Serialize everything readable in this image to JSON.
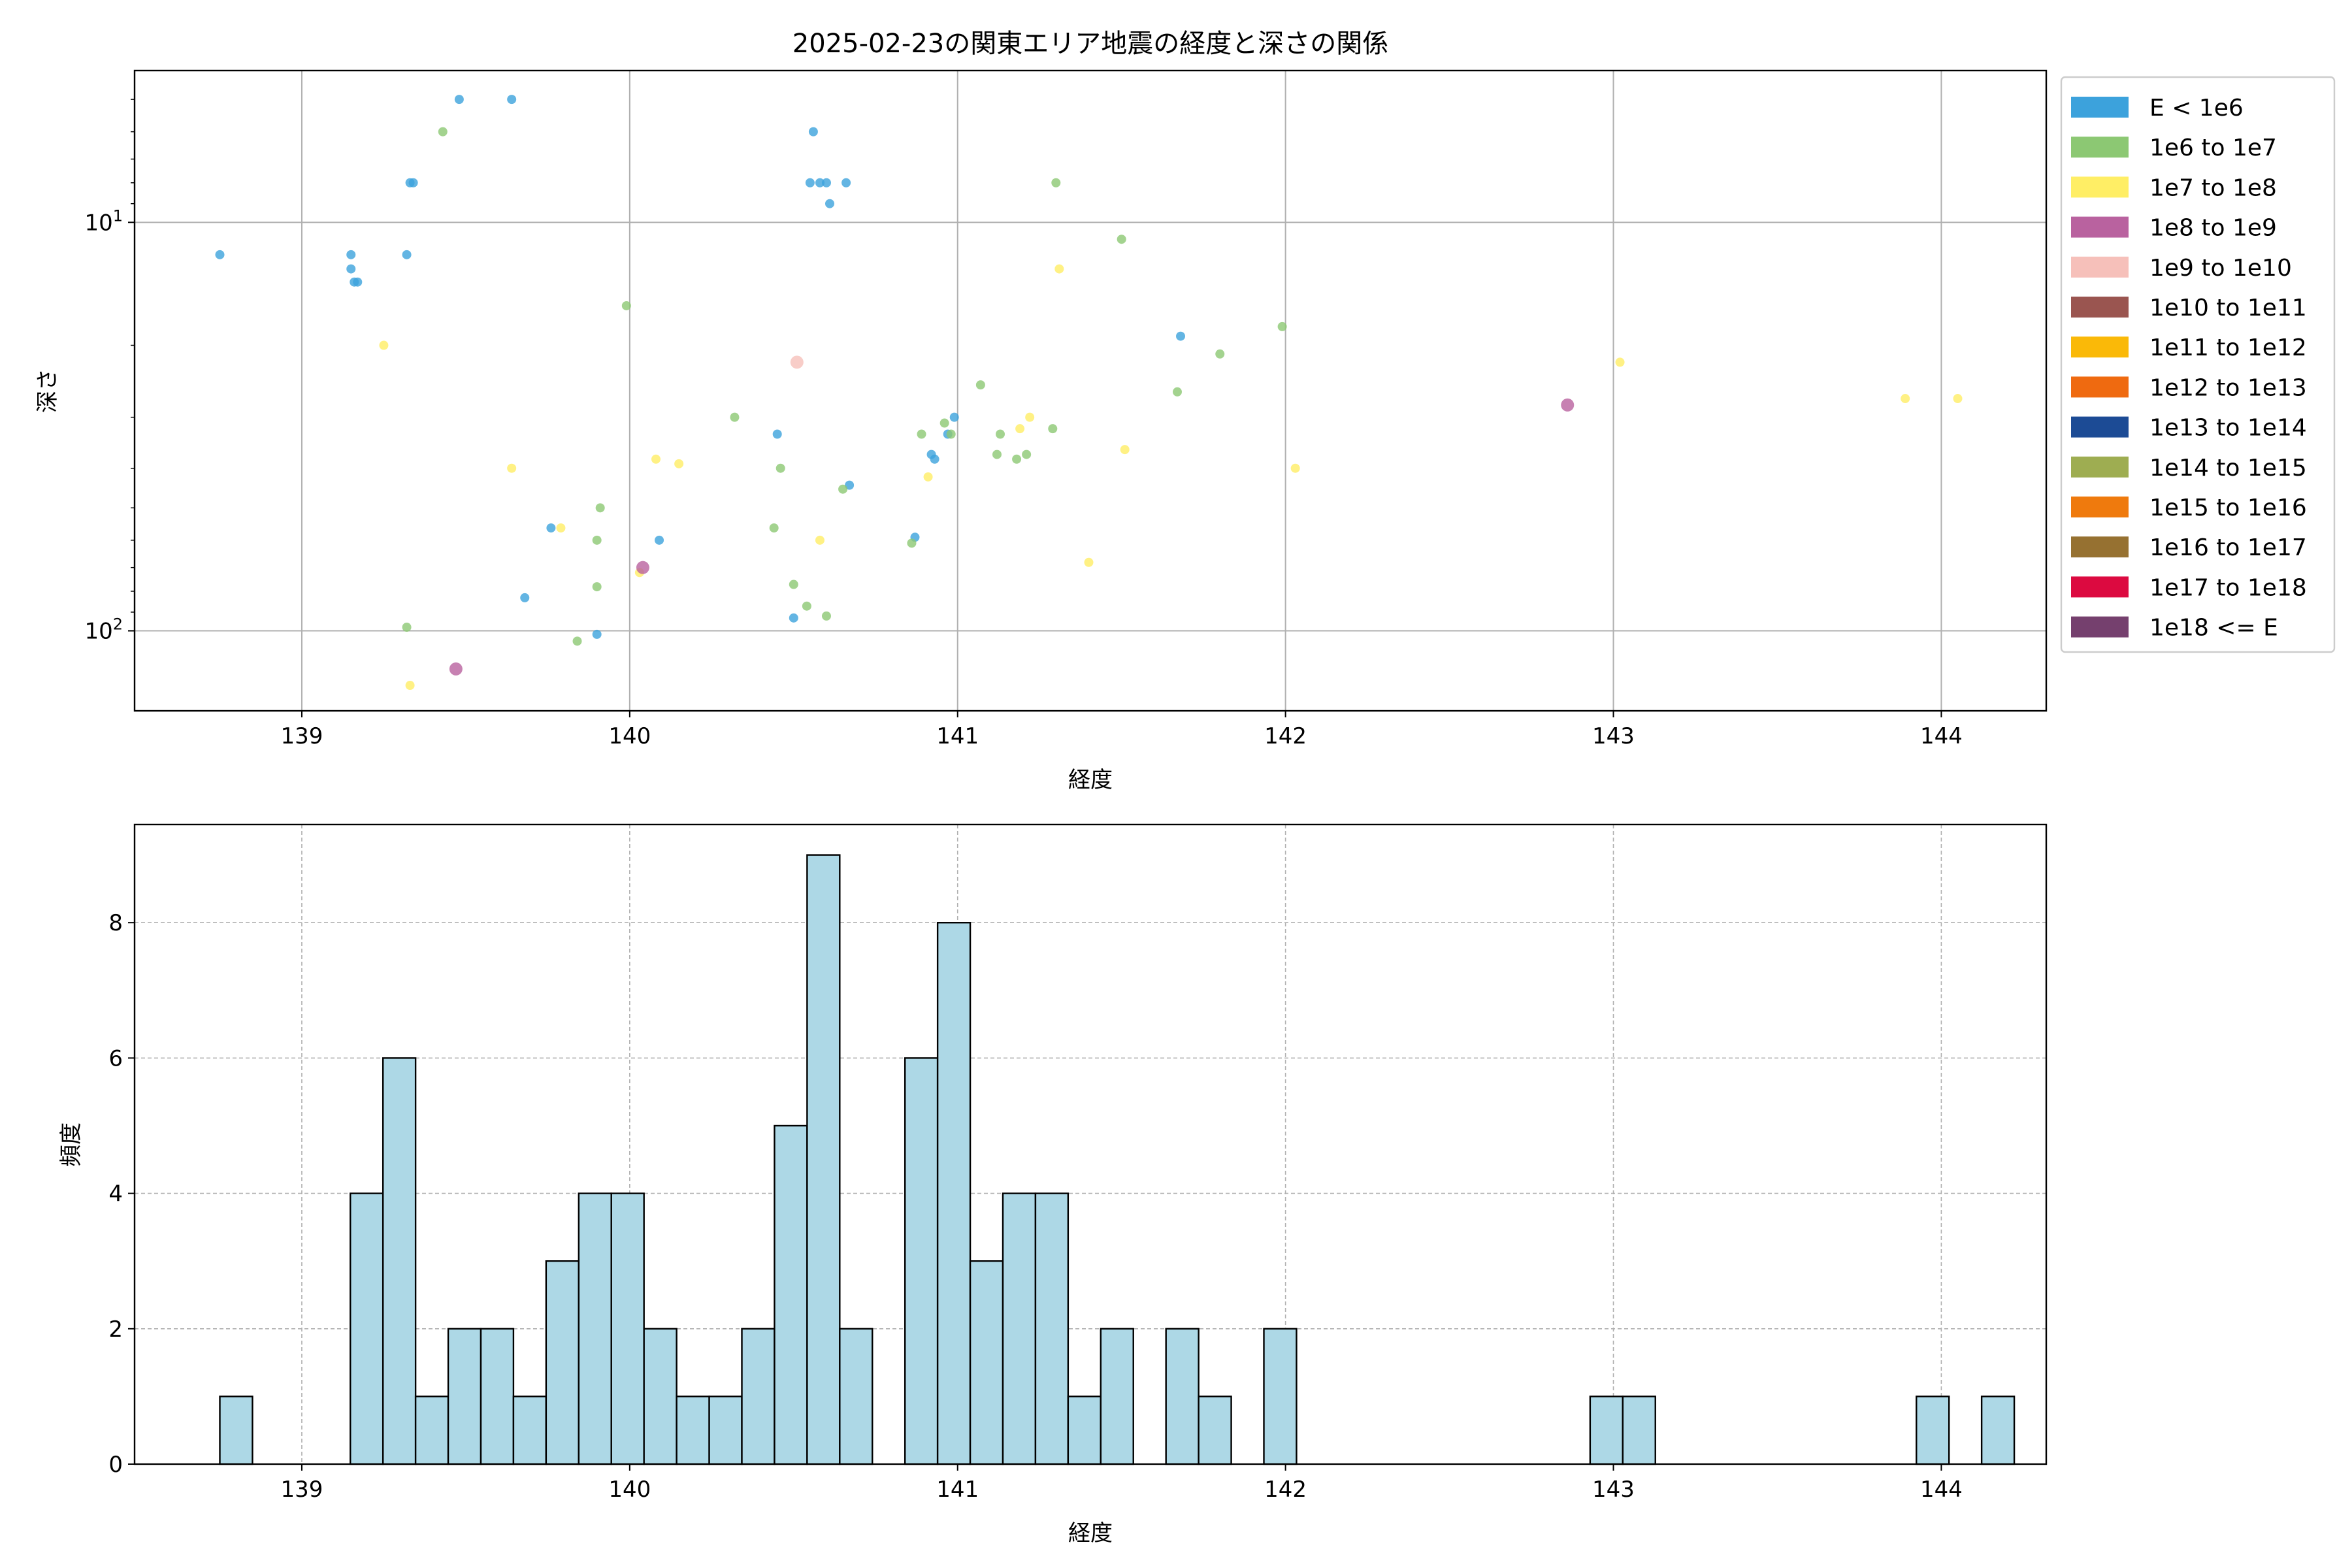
{
  "chart_data": [
    {
      "type": "scatter",
      "title": "2025-02-23の関東エリア地震の経度と深さの関係",
      "xlabel": "経度",
      "ylabel": "深さ",
      "xlim": [
        138.49,
        144.32
      ],
      "ylim": [
        157,
        4.25
      ],
      "y_scale": "log",
      "y_inverted": true,
      "x_ticks": [
        139,
        140,
        141,
        142,
        143,
        144
      ],
      "x_tick_labels": [
        "139",
        "140",
        "141",
        "142",
        "143",
        "144"
      ],
      "y_ticks": [
        10,
        100
      ],
      "y_tick_labels": [
        "10^1",
        "10^2"
      ],
      "grid": true,
      "legend_position": "outside-right",
      "legend": [
        {
          "label": "E < 1e6",
          "color": "#3ca2dc"
        },
        {
          "label": "1e6 to 1e7",
          "color": "#8cc873"
        },
        {
          "label": "1e7 to 1e8",
          "color": "#ffee65"
        },
        {
          "label": "1e8 to 1e9",
          "color": "#b9629f"
        },
        {
          "label": "1e9 to 1e10",
          "color": "#f6c0ba"
        },
        {
          "label": "1e10 to 1e11",
          "color": "#9a5550"
        },
        {
          "label": "1e11 to 1e12",
          "color": "#fab908"
        },
        {
          "label": "1e12 to 1e13",
          "color": "#ef6a10"
        },
        {
          "label": "1e13 to 1e14",
          "color": "#1c4b95"
        },
        {
          "label": "1e14 to 1e15",
          "color": "#9ead51"
        },
        {
          "label": "1e15 to 1e16",
          "color": "#ef7a0d"
        },
        {
          "label": "1e16 to 1e17",
          "color": "#967131"
        },
        {
          "label": "1e17 to 1e18",
          "color": "#dc0a40"
        },
        {
          "label": "1e18 <= E",
          "color": "#75406e"
        }
      ],
      "series": [
        {
          "name": "E < 1e6",
          "color": "#3ca2dc",
          "points": [
            [
              138.75,
              12
            ],
            [
              139.15,
              12
            ],
            [
              139.15,
              13
            ],
            [
              139.16,
              14
            ],
            [
              139.17,
              14
            ],
            [
              139.32,
              12
            ],
            [
              139.33,
              8
            ],
            [
              139.34,
              8
            ],
            [
              139.48,
              5
            ],
            [
              139.64,
              5
            ],
            [
              140.56,
              6
            ],
            [
              140.55,
              8
            ],
            [
              140.58,
              8
            ],
            [
              140.6,
              8
            ],
            [
              140.61,
              9
            ],
            [
              140.66,
              8
            ],
            [
              141.68,
              19
            ],
            [
              140.45,
              33
            ],
            [
              140.97,
              33
            ],
            [
              140.99,
              30
            ],
            [
              140.92,
              37
            ],
            [
              140.93,
              38
            ],
            [
              140.67,
              44
            ],
            [
              139.76,
              56
            ],
            [
              140.09,
              60
            ],
            [
              140.87,
              59
            ],
            [
              139.68,
              83
            ],
            [
              140.5,
              93
            ],
            [
              139.9,
              102
            ]
          ]
        },
        {
          "name": "1e6 to 1e7",
          "color": "#8cc873",
          "points": [
            [
              139.43,
              6
            ],
            [
              141.3,
              8
            ],
            [
              141.5,
              11
            ],
            [
              139.99,
              16
            ],
            [
              141.99,
              18
            ],
            [
              141.8,
              21
            ],
            [
              141.67,
              26
            ],
            [
              141.07,
              25
            ],
            [
              140.32,
              30
            ],
            [
              140.96,
              31
            ],
            [
              140.89,
              33
            ],
            [
              140.98,
              33
            ],
            [
              141.13,
              33
            ],
            [
              141.29,
              32
            ],
            [
              141.12,
              37
            ],
            [
              141.21,
              37
            ],
            [
              141.18,
              38
            ],
            [
              140.46,
              40
            ],
            [
              140.65,
              45
            ],
            [
              139.91,
              50
            ],
            [
              140.44,
              56
            ],
            [
              139.9,
              60
            ],
            [
              140.86,
              61
            ],
            [
              139.9,
              78
            ],
            [
              140.5,
              77
            ],
            [
              140.54,
              87
            ],
            [
              140.6,
              92
            ],
            [
              139.32,
              98
            ],
            [
              139.84,
              106
            ]
          ]
        },
        {
          "name": "1e7 to 1e8",
          "color": "#ffee65",
          "points": [
            [
              141.31,
              13
            ],
            [
              139.25,
              20
            ],
            [
              143.02,
              22
            ],
            [
              143.89,
              27
            ],
            [
              144.05,
              27
            ],
            [
              141.19,
              32
            ],
            [
              141.22,
              30
            ],
            [
              141.51,
              36
            ],
            [
              140.08,
              38
            ],
            [
              140.15,
              39
            ],
            [
              139.64,
              40
            ],
            [
              142.03,
              40
            ],
            [
              140.91,
              42
            ],
            [
              139.79,
              56
            ],
            [
              140.58,
              60
            ],
            [
              141.4,
              68
            ],
            [
              140.03,
              72
            ],
            [
              139.33,
              136
            ]
          ]
        },
        {
          "name": "1e8 to 1e9",
          "color": "#b9629f",
          "points": [
            [
              142.86,
              28
            ],
            [
              140.04,
              70
            ],
            [
              139.47,
              124
            ]
          ]
        },
        {
          "name": "1e9 to 1e10",
          "color": "#f6c0ba",
          "points": [
            [
              140.51,
              22
            ]
          ]
        }
      ]
    },
    {
      "type": "bar",
      "subtype": "histogram",
      "xlabel": "経度",
      "ylabel": "頻度",
      "xlim": [
        138.49,
        144.32
      ],
      "ylim": [
        0,
        9.45
      ],
      "x_ticks": [
        139,
        140,
        141,
        142,
        143,
        144
      ],
      "x_tick_labels": [
        "139",
        "140",
        "141",
        "142",
        "143",
        "144"
      ],
      "y_ticks": [
        0,
        2,
        4,
        6,
        8
      ],
      "y_tick_labels": [
        "0",
        "2",
        "4",
        "6",
        "8"
      ],
      "grid": true,
      "bar_color": "#add8e6",
      "bin_start": 138.75,
      "bin_width": 0.0995,
      "counts": [
        1,
        0,
        0,
        0,
        4,
        6,
        1,
        2,
        2,
        1,
        3,
        4,
        4,
        2,
        1,
        1,
        2,
        5,
        9,
        2,
        0,
        6,
        8,
        3,
        4,
        4,
        1,
        2,
        0,
        2,
        1,
        0,
        2,
        0,
        0,
        0,
        0,
        0,
        0,
        0,
        0,
        0,
        1,
        1,
        0,
        0,
        0,
        0,
        0,
        0,
        0,
        0,
        1,
        0,
        1
      ]
    }
  ]
}
